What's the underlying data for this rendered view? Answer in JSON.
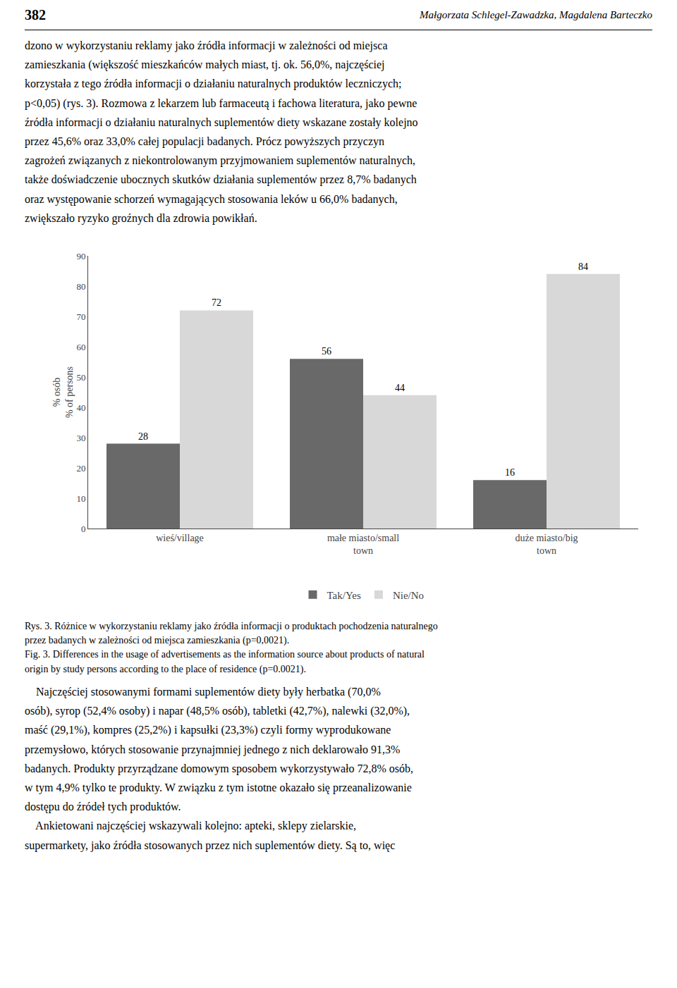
{
  "chart_data": {
    "type": "bar",
    "title": "Rys. 3. Różnice w wykorzystaniu reklamy jako źródła informacji o produktach pochodzenia naturalnego\nprzez badanych w zależności od miejsca zamieszkania (p=0,0021).\nFig. 3. Differences in the usage of advertisements as the information source about products of natural\norigin by study persons according to the place of residence (p=0.0021).",
    "categories": [
      "wieś/village",
      "małe miasto/small\ntown",
      "duże miasto/big\ntown"
    ],
    "series": [
      {
        "name": "Tak/Yes",
        "color": "#696969",
        "values": [
          28,
          56,
          16
        ]
      },
      {
        "name": "Nie/No",
        "color": "#d8d8d8",
        "values": [
          72,
          44,
          84
        ]
      }
    ],
    "ylabel": "% osób\n% of persons",
    "ylim": [
      0,
      90
    ],
    "yticks": [
      0,
      10,
      20,
      30,
      40,
      50,
      60,
      70,
      80,
      90
    ],
    "grid": false,
    "legend": "bottom",
    "data_labels": true,
    "annotations": [
      "382",
      "Małgorzata Schlegel-Zawadzka, Magdalena Barteczko",
      "dzono w wykorzystaniu reklamy jako źródła informacji w zależności od miejsca\nzamieszkania (większość mieszkańców małych miast, tj. ok. 56,0%, najczęściej\nkorzystała z tego źródła informacji o działaniu naturalnych produktów leczniczych;\np<0,05) (rys. 3). Rozmowa z lekarzem lub farmaceutą i fachowa literatura, jako pewne\nźródła informacji o działaniu naturalnych suplementów diety wskazane zostały kolejno\nprzez 45,6% oraz 33,0% całej populacji badanych. Prócz powyższych przyczyn\nzagrożeń związanych z niekontrolowanym przyjmowaniem suplementów naturalnych,\ntakże doświadczenie ubocznych skutków działania suplementów przez 8,7% badanych\noraz występowanie schorzeń wymagających stosowania leków u 66,0% badanych,\nzwiększało ryzyko groźnych dla zdrowia powikłań.",
      "    Najczęściej stosowanymi formami suplementów diety były herbatka (70,0%\nosób), syrop (52,4% osoby) i napar (48,5% osób), tabletki (42,7%), nalewki (32,0%),\nmaść (29,1%), kompres (25,2%) i kapsułki (23,3%) czyli formy wyprodukowane\nprzemysłowo, których stosowanie przynajmniej jednego z nich deklarowało 91,3%\nbadanych. Produkty przyrządzane domowym sposobem wykorzystywało 72,8% osób,\nw tym 4,9% tylko te produkty. W związku z tym istotne okazało się przeanalizowanie\ndostępu do źródeł tych produktów.\n    Ankietowani najczęściej wskazywali kolejno: apteki, sklepy zielarskie,\nsupermarkety, jako źródła stosowanych przez nich suplementów diety. Są to, więc"
    ]
  }
}
